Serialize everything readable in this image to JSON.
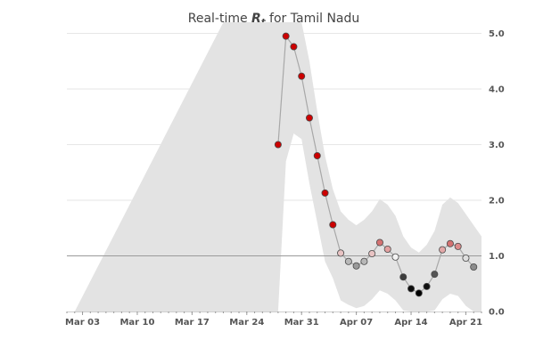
{
  "chart_data": {
    "type": "line",
    "title": {
      "prefix": "Real-time ",
      "symbol": "R",
      "subscript": "t",
      "suffix": " for Tamil Nadu"
    },
    "x_axis": {
      "start_date": "2020-03-01",
      "end_date": "2020-04-23",
      "ticks": [
        {
          "date": "2020-03-03",
          "label": "Mar 03"
        },
        {
          "date": "2020-03-10",
          "label": "Mar 10"
        },
        {
          "date": "2020-03-17",
          "label": "Mar 17"
        },
        {
          "date": "2020-03-24",
          "label": "Mar 24"
        },
        {
          "date": "2020-03-31",
          "label": "Mar 31"
        },
        {
          "date": "2020-04-07",
          "label": "Apr 07"
        },
        {
          "date": "2020-04-14",
          "label": "Apr 14"
        },
        {
          "date": "2020-04-21",
          "label": "Apr 21"
        }
      ]
    },
    "y_axis": {
      "position": "right",
      "ylim": [
        0,
        5.2
      ],
      "ticks": [
        "0.0",
        "1.0",
        "2.0",
        "3.0",
        "4.0",
        "5.0"
      ]
    },
    "reference_line": 1.0,
    "grid": "horizontal",
    "series": {
      "values": [
        {
          "date": "2020-03-28",
          "rt": 3.0,
          "color": "#cc0000"
        },
        {
          "date": "2020-03-29",
          "rt": 4.95,
          "color": "#cc0000"
        },
        {
          "date": "2020-03-30",
          "rt": 4.76,
          "color": "#cc0000"
        },
        {
          "date": "2020-03-31",
          "rt": 4.23,
          "color": "#cc0000"
        },
        {
          "date": "2020-04-01",
          "rt": 3.48,
          "color": "#cc0000"
        },
        {
          "date": "2020-04-02",
          "rt": 2.8,
          "color": "#cc0000"
        },
        {
          "date": "2020-04-03",
          "rt": 2.13,
          "color": "#cc0000"
        },
        {
          "date": "2020-04-04",
          "rt": 1.56,
          "color": "#cc0000"
        },
        {
          "date": "2020-04-05",
          "rt": 1.05,
          "color": "#e8c3c3"
        },
        {
          "date": "2020-04-06",
          "rt": 0.9,
          "color": "#b8b8b8"
        },
        {
          "date": "2020-04-07",
          "rt": 0.82,
          "color": "#9a9a9a"
        },
        {
          "date": "2020-04-08",
          "rt": 0.9,
          "color": "#b8b8b8"
        },
        {
          "date": "2020-04-09",
          "rt": 1.04,
          "color": "#e8c3c3"
        },
        {
          "date": "2020-04-10",
          "rt": 1.24,
          "color": "#d47272"
        },
        {
          "date": "2020-04-11",
          "rt": 1.12,
          "color": "#e2a0a0"
        },
        {
          "date": "2020-04-12",
          "rt": 0.98,
          "color": "#f3f3f3"
        },
        {
          "date": "2020-04-13",
          "rt": 0.62,
          "color": "#3d3d3d"
        },
        {
          "date": "2020-04-14",
          "rt": 0.41,
          "color": "#0d0d0d"
        },
        {
          "date": "2020-04-15",
          "rt": 0.33,
          "color": "#000000"
        },
        {
          "date": "2020-04-16",
          "rt": 0.45,
          "color": "#111111"
        },
        {
          "date": "2020-04-17",
          "rt": 0.67,
          "color": "#555555"
        },
        {
          "date": "2020-04-18",
          "rt": 1.11,
          "color": "#e3a8a8"
        },
        {
          "date": "2020-04-19",
          "rt": 1.22,
          "color": "#d47272"
        },
        {
          "date": "2020-04-20",
          "rt": 1.17,
          "color": "#dc8c8c"
        },
        {
          "date": "2020-04-21",
          "rt": 0.96,
          "color": "#dedede"
        },
        {
          "date": "2020-04-22",
          "rt": 0.8,
          "color": "#8c8c8c"
        }
      ]
    },
    "credible_interval": [
      {
        "date": "2020-03-02",
        "low": 0.0,
        "high": 0.0
      },
      {
        "date": "2020-03-21",
        "low": 0.0,
        "high": 5.2
      },
      {
        "date": "2020-03-28",
        "low": 0.0,
        "high": 5.2
      },
      {
        "date": "2020-03-29",
        "low": 2.7,
        "high": 5.2
      },
      {
        "date": "2020-03-30",
        "low": 3.2,
        "high": 5.2
      },
      {
        "date": "2020-03-31",
        "low": 3.1,
        "high": 5.2
      },
      {
        "date": "2020-04-01",
        "low": 2.3,
        "high": 4.5
      },
      {
        "date": "2020-04-02",
        "low": 1.6,
        "high": 3.6
      },
      {
        "date": "2020-04-03",
        "low": 0.9,
        "high": 2.8
      },
      {
        "date": "2020-04-04",
        "low": 0.6,
        "high": 2.2
      },
      {
        "date": "2020-04-05",
        "low": 0.2,
        "high": 1.8
      },
      {
        "date": "2020-04-06",
        "low": 0.12,
        "high": 1.65
      },
      {
        "date": "2020-04-07",
        "low": 0.06,
        "high": 1.55
      },
      {
        "date": "2020-04-08",
        "low": 0.1,
        "high": 1.65
      },
      {
        "date": "2020-04-09",
        "low": 0.22,
        "high": 1.8
      },
      {
        "date": "2020-04-10",
        "low": 0.38,
        "high": 2.02
      },
      {
        "date": "2020-04-11",
        "low": 0.32,
        "high": 1.92
      },
      {
        "date": "2020-04-12",
        "low": 0.2,
        "high": 1.72
      },
      {
        "date": "2020-04-13",
        "low": 0.02,
        "high": 1.35
      },
      {
        "date": "2020-04-14",
        "low": 0.0,
        "high": 1.15
      },
      {
        "date": "2020-04-15",
        "low": 0.0,
        "high": 1.06
      },
      {
        "date": "2020-04-16",
        "low": 0.0,
        "high": 1.2
      },
      {
        "date": "2020-04-17",
        "low": 0.02,
        "high": 1.45
      },
      {
        "date": "2020-04-18",
        "low": 0.22,
        "high": 1.92
      },
      {
        "date": "2020-04-19",
        "low": 0.32,
        "high": 2.05
      },
      {
        "date": "2020-04-20",
        "low": 0.28,
        "high": 1.95
      },
      {
        "date": "2020-04-21",
        "low": 0.1,
        "high": 1.75
      },
      {
        "date": "2020-04-22",
        "low": 0.0,
        "high": 1.55
      },
      {
        "date": "2020-04-23",
        "low": 0.0,
        "high": 1.35
      }
    ]
  }
}
